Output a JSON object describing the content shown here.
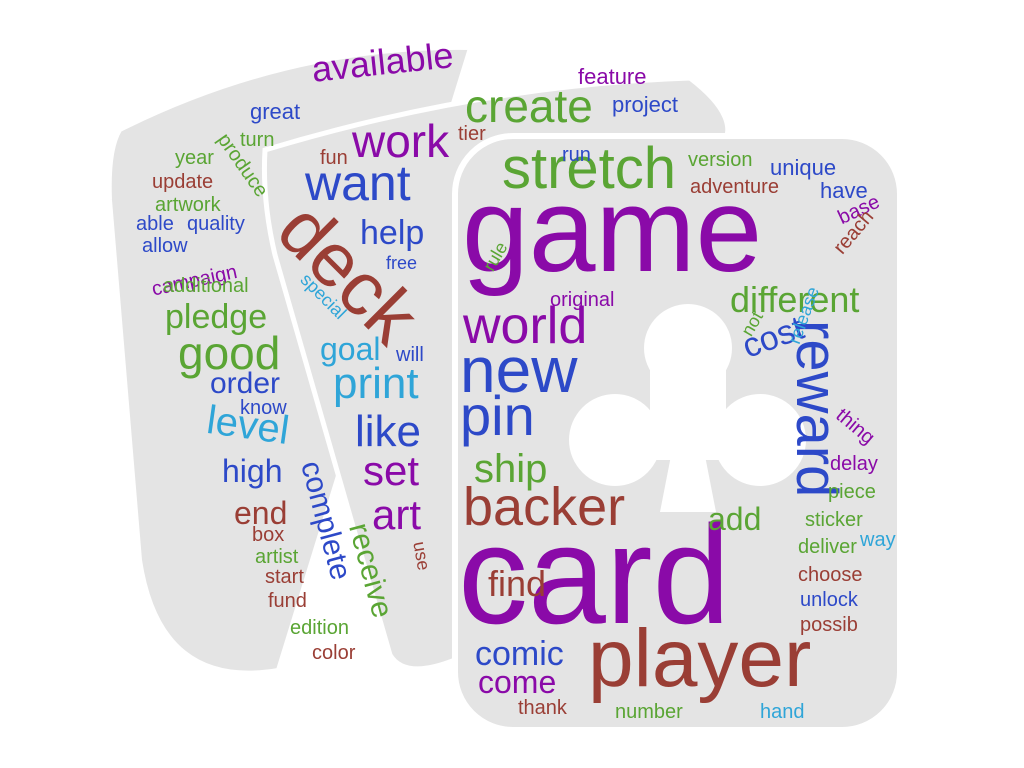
{
  "colors": {
    "purple": "#8a0aa8",
    "blue": "#2d49c8",
    "green": "#5aa534",
    "brown": "#9a3e35",
    "cyan": "#2fa5d8",
    "card_fill": "#e4e4e4",
    "background": "#ffffff"
  },
  "decoration": {
    "shape": "three-playing-cards",
    "icon": "club-icon"
  },
  "words": [
    {
      "text": "game",
      "color": "purple"
    },
    {
      "text": "card",
      "color": "purple"
    },
    {
      "text": "player",
      "color": "brown"
    },
    {
      "text": "new",
      "color": "blue"
    },
    {
      "text": "stretch",
      "color": "green"
    },
    {
      "text": "backer",
      "color": "brown"
    },
    {
      "text": "world",
      "color": "purple"
    },
    {
      "text": "pin",
      "color": "blue"
    },
    {
      "text": "reward",
      "color": "blue"
    },
    {
      "text": "deck",
      "color": "brown"
    },
    {
      "text": "want",
      "color": "blue"
    },
    {
      "text": "create",
      "color": "green"
    },
    {
      "text": "work",
      "color": "purple"
    },
    {
      "text": "available",
      "color": "purple"
    },
    {
      "text": "good",
      "color": "green"
    },
    {
      "text": "ship",
      "color": "green"
    },
    {
      "text": "find",
      "color": "brown"
    },
    {
      "text": "print",
      "color": "cyan"
    },
    {
      "text": "like",
      "color": "blue"
    },
    {
      "text": "set",
      "color": "purple"
    },
    {
      "text": "art",
      "color": "purple"
    },
    {
      "text": "level",
      "color": "cyan"
    },
    {
      "text": "different",
      "color": "green"
    },
    {
      "text": "cost",
      "color": "blue"
    },
    {
      "text": "comic",
      "color": "blue"
    },
    {
      "text": "come",
      "color": "purple"
    },
    {
      "text": "pledge",
      "color": "green"
    },
    {
      "text": "help",
      "color": "blue"
    },
    {
      "text": "goal",
      "color": "cyan"
    },
    {
      "text": "order",
      "color": "blue"
    },
    {
      "text": "high",
      "color": "blue"
    },
    {
      "text": "end",
      "color": "brown"
    },
    {
      "text": "complete",
      "color": "blue"
    },
    {
      "text": "receive",
      "color": "green"
    },
    {
      "text": "add",
      "color": "green"
    },
    {
      "text": "feature",
      "color": "purple"
    },
    {
      "text": "project",
      "color": "blue"
    },
    {
      "text": "great",
      "color": "blue"
    },
    {
      "text": "tier",
      "color": "brown"
    },
    {
      "text": "fun",
      "color": "brown"
    },
    {
      "text": "run",
      "color": "blue"
    },
    {
      "text": "version",
      "color": "green"
    },
    {
      "text": "unique",
      "color": "blue"
    },
    {
      "text": "adventure",
      "color": "brown"
    },
    {
      "text": "have",
      "color": "blue"
    },
    {
      "text": "base",
      "color": "purple"
    },
    {
      "text": "reach",
      "color": "brown"
    },
    {
      "text": "turn",
      "color": "green"
    },
    {
      "text": "produce",
      "color": "green"
    },
    {
      "text": "year",
      "color": "green"
    },
    {
      "text": "update",
      "color": "brown"
    },
    {
      "text": "artwork",
      "color": "green"
    },
    {
      "text": "able",
      "color": "blue"
    },
    {
      "text": "quality",
      "color": "blue"
    },
    {
      "text": "allow",
      "color": "blue"
    },
    {
      "text": "campaign",
      "color": "purple"
    },
    {
      "text": "additional",
      "color": "green"
    },
    {
      "text": "free",
      "color": "blue"
    },
    {
      "text": "special",
      "color": "cyan"
    },
    {
      "text": "rule",
      "color": "green"
    },
    {
      "text": "original",
      "color": "purple"
    },
    {
      "text": "not",
      "color": "green"
    },
    {
      "text": "release",
      "color": "cyan"
    },
    {
      "text": "thing",
      "color": "purple"
    },
    {
      "text": "delay",
      "color": "purple"
    },
    {
      "text": "piece",
      "color": "green"
    },
    {
      "text": "sticker",
      "color": "green"
    },
    {
      "text": "way",
      "color": "cyan"
    },
    {
      "text": "deliver",
      "color": "green"
    },
    {
      "text": "choose",
      "color": "brown"
    },
    {
      "text": "unlock",
      "color": "blue"
    },
    {
      "text": "possib",
      "color": "brown"
    },
    {
      "text": "know",
      "color": "blue"
    },
    {
      "text": "will",
      "color": "blue"
    },
    {
      "text": "box",
      "color": "brown"
    },
    {
      "text": "artist",
      "color": "green"
    },
    {
      "text": "start",
      "color": "brown"
    },
    {
      "text": "fund",
      "color": "brown"
    },
    {
      "text": "edition",
      "color": "green"
    },
    {
      "text": "color",
      "color": "brown"
    },
    {
      "text": "use",
      "color": "brown"
    },
    {
      "text": "thank",
      "color": "brown"
    },
    {
      "text": "number",
      "color": "green"
    },
    {
      "text": "hand",
      "color": "cyan"
    }
  ]
}
